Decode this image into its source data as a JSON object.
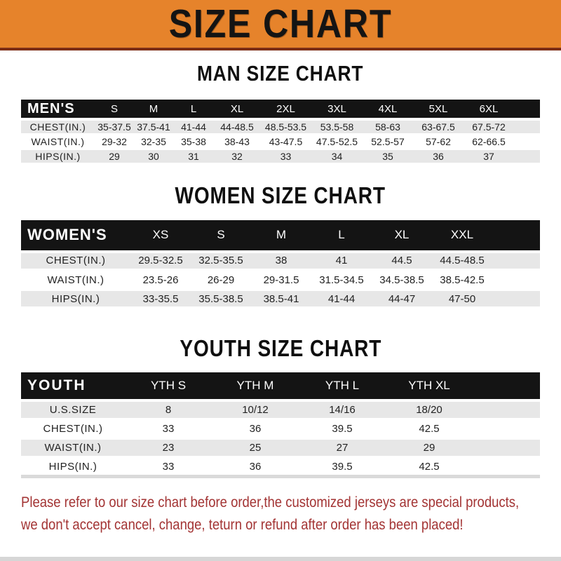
{
  "banner": {
    "title": "SIZE CHART"
  },
  "sections": [
    {
      "heading": "MAN SIZE CHART",
      "header_label": "MEN'S",
      "id": "mens",
      "columns": [
        "S",
        "M",
        "L",
        "XL",
        "2XL",
        "3XL",
        "4XL",
        "5XL",
        "6XL"
      ],
      "rows": [
        {
          "label": "CHEST(IN.)",
          "values": [
            "35-37.5",
            "37.5-41",
            "41-44",
            "44-48.5",
            "48.5-53.5",
            "53.5-58",
            "58-63",
            "63-67.5",
            "67.5-72"
          ]
        },
        {
          "label": "WAIST(IN.)",
          "values": [
            "29-32",
            "32-35",
            "35-38",
            "38-43",
            "43-47.5",
            "47.5-52.5",
            "52.5-57",
            "57-62",
            "62-66.5"
          ]
        },
        {
          "label": "HIPS(IN.)",
          "values": [
            "29",
            "30",
            "31",
            "32",
            "33",
            "34",
            "35",
            "36",
            "37"
          ]
        }
      ]
    },
    {
      "heading": "WOMEN SIZE CHART",
      "header_label": "WOMEN'S",
      "id": "womens",
      "columns": [
        "XS",
        "S",
        "M",
        "L",
        "XL",
        "XXL"
      ],
      "rows": [
        {
          "label": "CHEST(IN.)",
          "values": [
            "29.5-32.5",
            "32.5-35.5",
            "38",
            "41",
            "44.5",
            "44.5-48.5"
          ]
        },
        {
          "label": "WAIST(IN.)",
          "values": [
            "23.5-26",
            "26-29",
            "29-31.5",
            "31.5-34.5",
            "34.5-38.5",
            "38.5-42.5"
          ]
        },
        {
          "label": "HIPS(IN.)",
          "values": [
            "33-35.5",
            "35.5-38.5",
            "38.5-41",
            "41-44",
            "44-47",
            "47-50"
          ]
        }
      ]
    },
    {
      "heading": "YOUTH SIZE CHART",
      "header_label": "YOUTH",
      "id": "youth",
      "columns": [
        "YTH S",
        "YTH M",
        "YTH L",
        "YTH XL"
      ],
      "rows": [
        {
          "label": "U.S.SIZE",
          "values": [
            "8",
            "10/12",
            "14/16",
            "18/20"
          ]
        },
        {
          "label": "CHEST(IN.)",
          "values": [
            "33",
            "36",
            "39.5",
            "42.5"
          ]
        },
        {
          "label": "WAIST(IN.)",
          "values": [
            "23",
            "25",
            "27",
            "29"
          ]
        },
        {
          "label": "HIPS(IN.)",
          "values": [
            "33",
            "36",
            "39.5",
            "42.5"
          ]
        }
      ]
    }
  ],
  "footer": {
    "line1": "Please refer to our size chart before order,the customized jerseys are special products,",
    "line2": "we don't accept cancel, change, teturn or refund after order has been placed!"
  },
  "colors": {
    "banner_orange": "#E6832B",
    "banner_underline": "#7C2D15",
    "table_header_black": "#141414",
    "row_gray": "#E7E7E7",
    "notice_red": "#A33434"
  }
}
